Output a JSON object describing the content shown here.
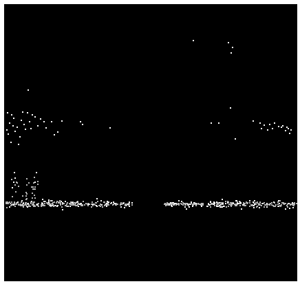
{
  "colors": {
    "frame": "#ffffff",
    "background": "#000000",
    "bright_point": "#ffffff",
    "dim_point": "#b9b9b9",
    "mid_point": "#d6d6d6"
  },
  "point_clusters": [
    {
      "kind": "band",
      "color": "#b9b9b9",
      "count": 520
    },
    {
      "kind": "band-edges",
      "color": "#ffffff",
      "count": 140
    },
    {
      "kind": "upper-scatter",
      "color": "#ffffff",
      "count": 55
    },
    {
      "kind": "sparse-outliers",
      "color": "#ffffff",
      "count": 9
    }
  ]
}
